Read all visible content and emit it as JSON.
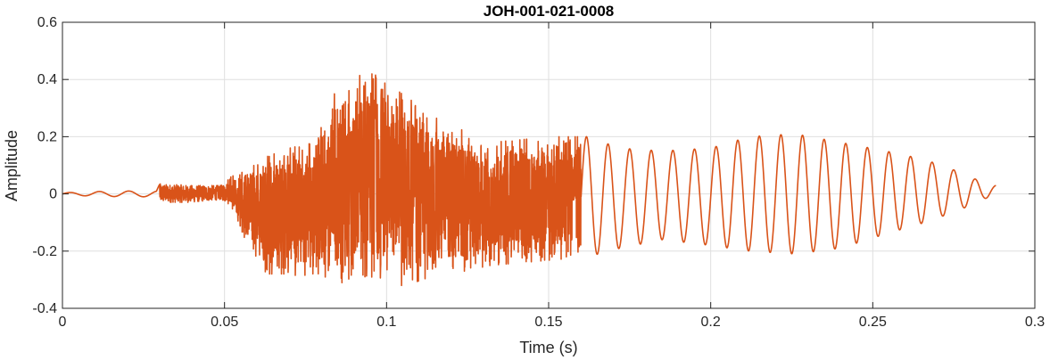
{
  "chart_data": {
    "type": "line",
    "title": "JOH-001-021-0008",
    "xlabel": "Time (s)",
    "ylabel": "Amplitude",
    "xlim": [
      0,
      0.3
    ],
    "ylim": [
      -0.4,
      0.6
    ],
    "xticks": [
      0,
      0.05,
      0.1,
      0.15,
      0.2,
      0.25,
      0.3
    ],
    "xtick_labels": [
      "0",
      "0.05",
      "0.1",
      "0.15",
      "0.2",
      "0.25",
      "0.3"
    ],
    "yticks": [
      -0.4,
      -0.2,
      0,
      0.2,
      0.4,
      0.6
    ],
    "ytick_labels": [
      "-0.4",
      "-0.2",
      "0",
      "0.2",
      "0.4",
      "0.6"
    ],
    "grid": true,
    "line_color": "#D95319",
    "series": [
      {
        "x_start": 0,
        "x_end": 0.288,
        "envelope": [
          [
            0.0,
            0.004,
            -0.004,
            0,
            0
          ],
          [
            0.01,
            0.008,
            -0.008,
            0,
            0
          ],
          [
            0.02,
            0.01,
            -0.01,
            0,
            0
          ],
          [
            0.029,
            0.01,
            -0.01,
            0,
            0
          ],
          [
            0.03,
            0.035,
            -0.03,
            0,
            0
          ],
          [
            0.04,
            0.03,
            -0.03,
            0,
            0
          ],
          [
            0.049,
            0.03,
            -0.02,
            0,
            0
          ],
          [
            0.052,
            0.06,
            -0.04,
            0,
            0
          ],
          [
            0.056,
            0.08,
            -0.15,
            0,
            0
          ],
          [
            0.063,
            0.13,
            -0.28,
            0,
            0
          ],
          [
            0.07,
            0.16,
            -0.28,
            0,
            0
          ],
          [
            0.078,
            0.18,
            -0.3,
            0,
            0
          ],
          [
            0.086,
            0.41,
            -0.31,
            0,
            0
          ],
          [
            0.096,
            0.42,
            -0.32,
            0,
            0
          ],
          [
            0.106,
            0.34,
            -0.32,
            0,
            0
          ],
          [
            0.116,
            0.26,
            -0.28,
            0,
            0
          ],
          [
            0.124,
            0.22,
            -0.27,
            0,
            0
          ],
          [
            0.132,
            0.18,
            -0.25,
            0,
            0
          ],
          [
            0.142,
            0.19,
            -0.24,
            0,
            0
          ],
          [
            0.152,
            0.2,
            -0.23,
            0,
            0
          ],
          [
            0.162,
            0.2,
            -0.22,
            0,
            0
          ],
          [
            0.172,
            0.16,
            -0.19,
            0,
            0
          ],
          [
            0.185,
            0.15,
            -0.16,
            0,
            0
          ],
          [
            0.2,
            0.16,
            -0.18,
            0,
            0
          ],
          [
            0.212,
            0.2,
            -0.2,
            0,
            0
          ],
          [
            0.226,
            0.21,
            -0.21,
            0,
            0
          ],
          [
            0.24,
            0.18,
            -0.19,
            0,
            0
          ],
          [
            0.254,
            0.15,
            -0.14,
            0,
            0
          ],
          [
            0.266,
            0.12,
            -0.1,
            0,
            0
          ],
          [
            0.276,
            0.08,
            -0.06,
            0,
            0
          ],
          [
            0.284,
            0.04,
            -0.02,
            0,
            0
          ],
          [
            0.288,
            0.03,
            0.0,
            0,
            0
          ]
        ]
      }
    ]
  }
}
